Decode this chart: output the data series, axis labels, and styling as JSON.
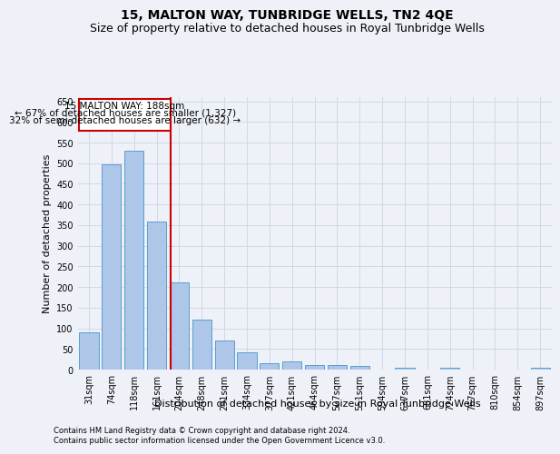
{
  "title": "15, MALTON WAY, TUNBRIDGE WELLS, TN2 4QE",
  "subtitle": "Size of property relative to detached houses in Royal Tunbridge Wells",
  "xlabel": "Distribution of detached houses by size in Royal Tunbridge Wells",
  "ylabel": "Number of detached properties",
  "footnote1": "Contains HM Land Registry data © Crown copyright and database right 2024.",
  "footnote2": "Contains public sector information licensed under the Open Government Licence v3.0.",
  "annotation_line1": "15 MALTON WAY: 188sqm",
  "annotation_line2": "← 67% of detached houses are smaller (1,327)",
  "annotation_line3": "32% of semi-detached houses are larger (632) →",
  "categories": [
    "31sqm",
    "74sqm",
    "118sqm",
    "161sqm",
    "204sqm",
    "248sqm",
    "291sqm",
    "334sqm",
    "377sqm",
    "421sqm",
    "464sqm",
    "507sqm",
    "551sqm",
    "594sqm",
    "637sqm",
    "681sqm",
    "724sqm",
    "767sqm",
    "810sqm",
    "854sqm",
    "897sqm"
  ],
  "bar_values": [
    90,
    498,
    530,
    358,
    212,
    121,
    70,
    42,
    15,
    19,
    10,
    11,
    8,
    0,
    5,
    0,
    5,
    0,
    0,
    0,
    5
  ],
  "bar_color": "#aec6e8",
  "bar_edge_color": "#5a9fd4",
  "vline_x": 3.63,
  "vline_color": "#cc0000",
  "ylim": [
    0,
    660
  ],
  "yticks": [
    0,
    50,
    100,
    150,
    200,
    250,
    300,
    350,
    400,
    450,
    500,
    550,
    600,
    650
  ],
  "grid_color": "#d0d8e8",
  "bg_color": "#eef2f8",
  "box_color": "#cc0000",
  "title_fontsize": 10,
  "subtitle_fontsize": 9,
  "axis_label_fontsize": 8,
  "tick_fontsize": 7,
  "annot_fontsize": 7.5,
  "footnote_fontsize": 6
}
